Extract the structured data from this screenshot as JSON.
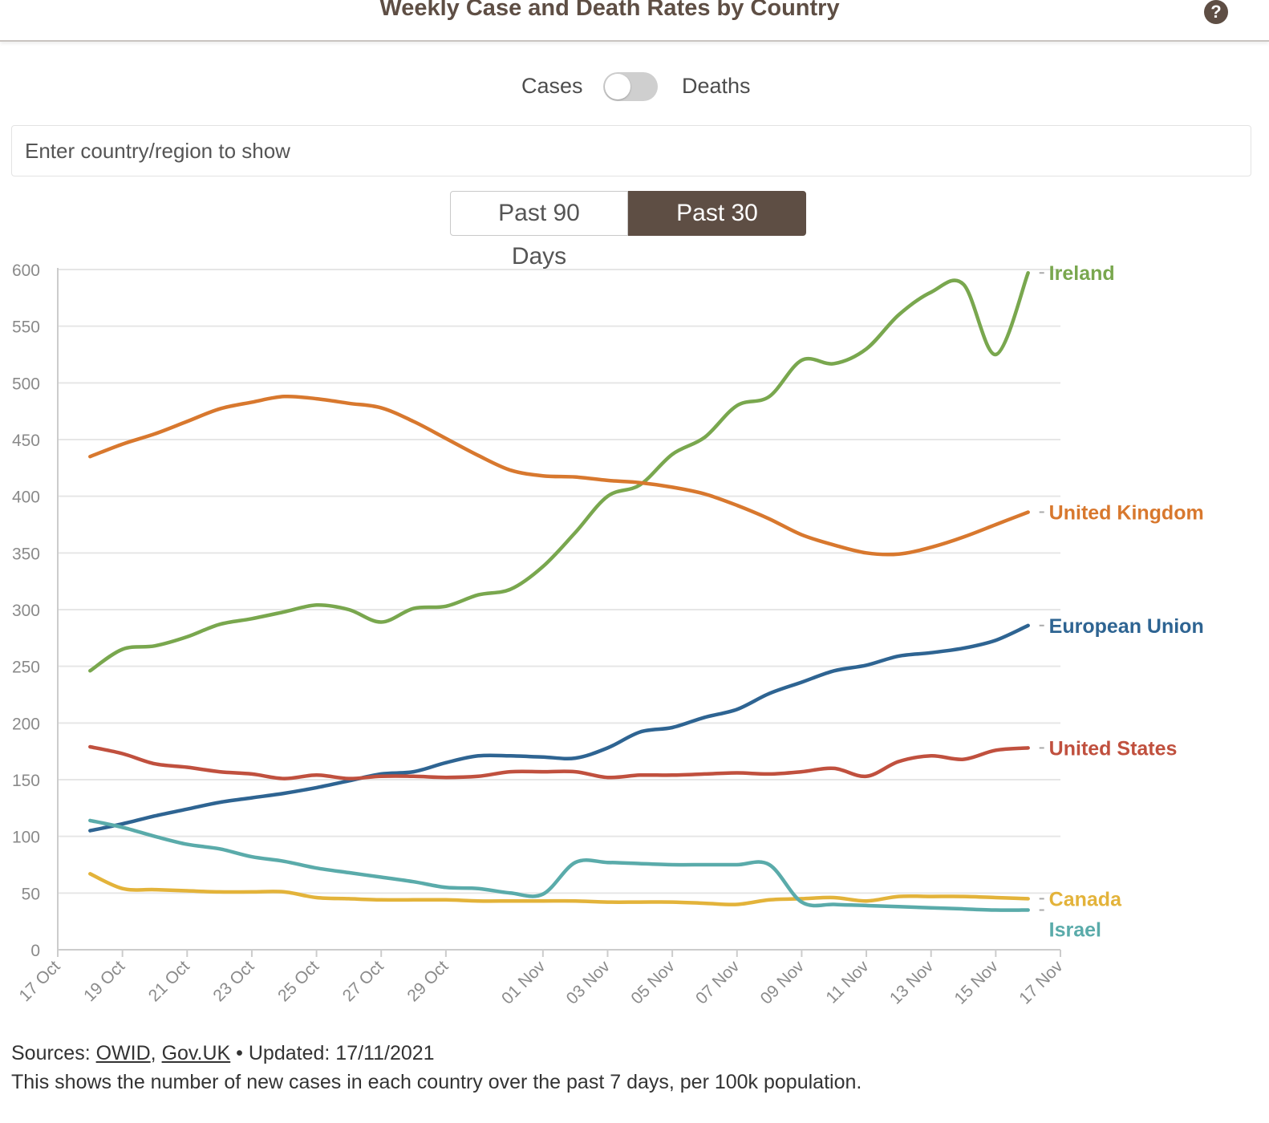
{
  "header": {
    "title": "Weekly Case and Death Rates by Country",
    "help_icon": "question-circle-icon"
  },
  "toggle": {
    "left_label": "Cases",
    "right_label": "Deaths",
    "state": "Cases"
  },
  "search": {
    "placeholder": "Enter country/region to show"
  },
  "range": {
    "options": [
      "Past 90 Days",
      "Past 30 Days"
    ],
    "selected": "Past 30 Days"
  },
  "footer": {
    "sources_prefix": "Sources: ",
    "source_1": "OWID",
    "separator": ", ",
    "source_2": "Gov.UK",
    "updated": " • Updated: 17/11/2021",
    "description": "This shows the number of new cases in each country over the past 7 days, per 100k population."
  },
  "chart_data": {
    "type": "line",
    "ylim": [
      0,
      600
    ],
    "yticks": [
      0,
      50,
      100,
      150,
      200,
      250,
      300,
      350,
      400,
      450,
      500,
      550,
      600
    ],
    "xlim": [
      "2021-10-17",
      "2021-11-17"
    ],
    "xticks": [
      "17 Oct",
      "19 Oct",
      "21 Oct",
      "23 Oct",
      "25 Oct",
      "27 Oct",
      "29 Oct",
      "01 Nov",
      "03 Nov",
      "05 Nov",
      "07 Nov",
      "09 Nov",
      "11 Nov",
      "13 Nov",
      "15 Nov",
      "17 Nov"
    ],
    "xtick_dates": [
      "2021-10-17",
      "2021-10-19",
      "2021-10-21",
      "2021-10-23",
      "2021-10-25",
      "2021-10-27",
      "2021-10-29",
      "2021-11-01",
      "2021-11-03",
      "2021-11-05",
      "2021-11-07",
      "2021-11-09",
      "2021-11-11",
      "2021-11-13",
      "2021-11-15",
      "2021-11-17"
    ],
    "dates": [
      "2021-10-18",
      "2021-10-19",
      "2021-10-20",
      "2021-10-21",
      "2021-10-22",
      "2021-10-23",
      "2021-10-24",
      "2021-10-25",
      "2021-10-26",
      "2021-10-27",
      "2021-10-28",
      "2021-10-29",
      "2021-10-30",
      "2021-10-31",
      "2021-11-01",
      "2021-11-02",
      "2021-11-03",
      "2021-11-04",
      "2021-11-05",
      "2021-11-06",
      "2021-11-07",
      "2021-11-08",
      "2021-11-09",
      "2021-11-10",
      "2021-11-11",
      "2021-11-12",
      "2021-11-13",
      "2021-11-14",
      "2021-11-15",
      "2021-11-16"
    ],
    "grid": true,
    "legend": "labels at line ends, right",
    "series": [
      {
        "name": "Ireland",
        "color": "#79a74e",
        "values": [
          246,
          265,
          268,
          276,
          287,
          292,
          298,
          304,
          300,
          289,
          301,
          303,
          313,
          318,
          338,
          368,
          400,
          410,
          437,
          452,
          480,
          488,
          520,
          517,
          530,
          560,
          580,
          587,
          525,
          597
        ]
      },
      {
        "name": "United Kingdom",
        "color": "#d8782e",
        "values": [
          435,
          446,
          455,
          466,
          477,
          483,
          488,
          486,
          482,
          478,
          466,
          451,
          436,
          423,
          418,
          417,
          414,
          412,
          408,
          402,
          392,
          380,
          366,
          357,
          350,
          349,
          355,
          364,
          375,
          386
        ]
      },
      {
        "name": "European Union",
        "color": "#2e6492",
        "values": [
          105,
          111,
          118,
          124,
          130,
          134,
          138,
          143,
          149,
          155,
          157,
          165,
          171,
          171,
          170,
          169,
          178,
          192,
          196,
          205,
          212,
          226,
          236,
          246,
          251,
          259,
          262,
          266,
          273,
          286
        ]
      },
      {
        "name": "United States",
        "color": "#c0503e",
        "values": [
          179,
          173,
          164,
          161,
          157,
          155,
          151,
          154,
          151,
          153,
          153,
          152,
          153,
          157,
          157,
          157,
          152,
          154,
          154,
          155,
          156,
          155,
          157,
          160,
          153,
          166,
          171,
          168,
          176,
          178
        ]
      },
      {
        "name": "Canada",
        "color": "#e3b33a",
        "values": [
          67,
          54,
          53,
          52,
          51,
          51,
          51,
          46,
          45,
          44,
          44,
          44,
          43,
          43,
          43,
          43,
          42,
          42,
          42,
          41,
          40,
          44,
          45,
          46,
          43,
          47,
          47,
          47,
          46,
          45
        ]
      },
      {
        "name": "Israel",
        "color": "#5aabaa",
        "values": [
          114,
          108,
          100,
          93,
          89,
          82,
          78,
          72,
          68,
          64,
          60,
          55,
          54,
          50,
          49,
          77,
          77,
          76,
          75,
          75,
          75,
          75,
          42,
          40,
          39,
          38,
          37,
          36,
          35,
          35
        ]
      }
    ]
  }
}
